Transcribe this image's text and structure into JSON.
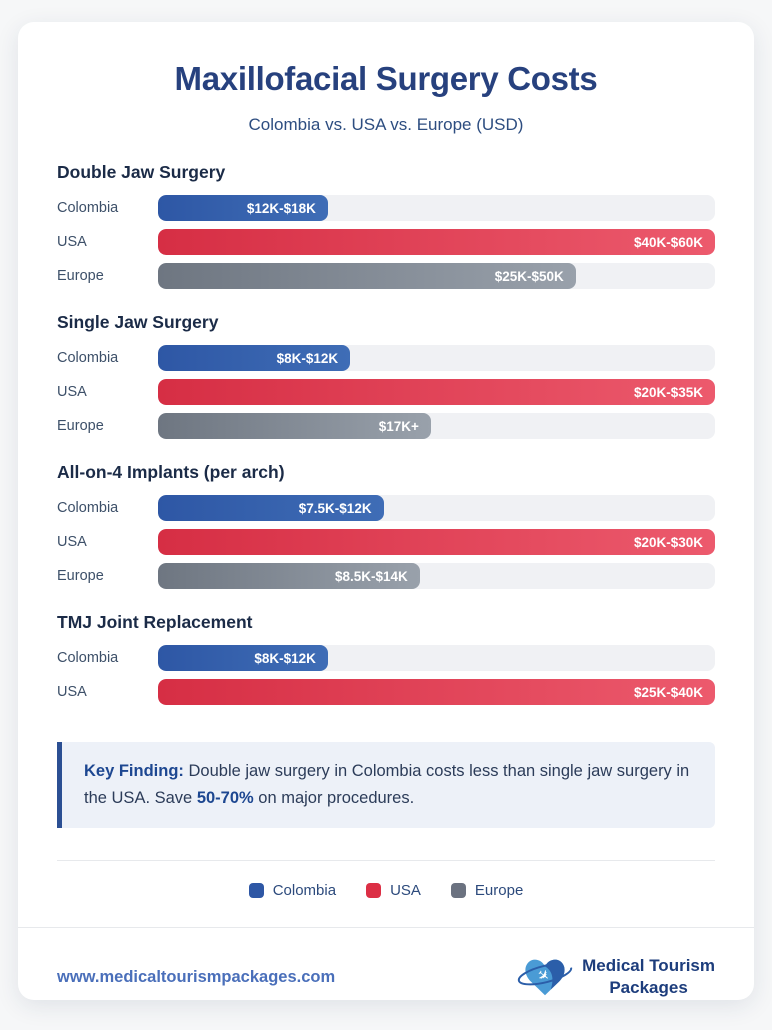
{
  "page": {
    "title": "Maxillofacial Surgery Costs",
    "subtitle": "Colombia vs. USA vs. Europe (USD)"
  },
  "chart_data": {
    "type": "bar",
    "orientation": "horizontal",
    "unit": "USD",
    "series_names": [
      "Colombia",
      "USA",
      "Europe"
    ],
    "colors": {
      "colombia": "#2e57a5",
      "usa": "#dc2f45",
      "europe": "#6b7280"
    },
    "track_color": "#f0f1f4",
    "groups": [
      {
        "title": "Double Jaw Surgery",
        "rows": [
          {
            "country": "Colombia",
            "value": "$12K-$18K",
            "low_usd": 12000,
            "high_usd": 18000,
            "series": "colombia",
            "width_pct": 30.5
          },
          {
            "country": "USA",
            "value": "$40K-$60K",
            "low_usd": 40000,
            "high_usd": 60000,
            "series": "usa",
            "width_pct": 100
          },
          {
            "country": "Europe",
            "value": "$25K-$50K",
            "low_usd": 25000,
            "high_usd": 50000,
            "series": "europe",
            "width_pct": 75
          }
        ]
      },
      {
        "title": "Single Jaw Surgery",
        "rows": [
          {
            "country": "Colombia",
            "value": "$8K-$12K",
            "low_usd": 8000,
            "high_usd": 12000,
            "series": "colombia",
            "width_pct": 34.5
          },
          {
            "country": "USA",
            "value": "$20K-$35K",
            "low_usd": 20000,
            "high_usd": 35000,
            "series": "usa",
            "width_pct": 100
          },
          {
            "country": "Europe",
            "value": "$17K+",
            "low_usd": 17000,
            "high_usd": null,
            "series": "europe",
            "width_pct": 49
          }
        ]
      },
      {
        "title": "All-on-4 Implants (per arch)",
        "rows": [
          {
            "country": "Colombia",
            "value": "$7.5K-$12K",
            "low_usd": 7500,
            "high_usd": 12000,
            "series": "colombia",
            "width_pct": 40.5
          },
          {
            "country": "USA",
            "value": "$20K-$30K",
            "low_usd": 20000,
            "high_usd": 30000,
            "series": "usa",
            "width_pct": 100
          },
          {
            "country": "Europe",
            "value": "$8.5K-$14K",
            "low_usd": 8500,
            "high_usd": 14000,
            "series": "europe",
            "width_pct": 47
          }
        ]
      },
      {
        "title": "TMJ Joint Replacement",
        "rows": [
          {
            "country": "Colombia",
            "value": "$8K-$12K",
            "low_usd": 8000,
            "high_usd": 12000,
            "series": "colombia",
            "width_pct": 30.5
          },
          {
            "country": "USA",
            "value": "$25K-$40K",
            "low_usd": 25000,
            "high_usd": 40000,
            "series": "usa",
            "width_pct": 100
          }
        ]
      }
    ]
  },
  "key_finding": {
    "label": "Key Finding:",
    "text_1": " Double jaw surgery in Colombia costs less than single jaw surgery in the USA. Save ",
    "highlight": "50-70%",
    "text_2": " on major procedures."
  },
  "legend": {
    "items": [
      {
        "label": "Colombia",
        "color": "#2e57a5"
      },
      {
        "label": "USA",
        "color": "#dc2f45"
      },
      {
        "label": "Europe",
        "color": "#6b7280"
      }
    ]
  },
  "footer": {
    "website": "www.medicaltourismpackages.com",
    "brand_line1": "Medical Tourism",
    "brand_line2": "Packages"
  }
}
